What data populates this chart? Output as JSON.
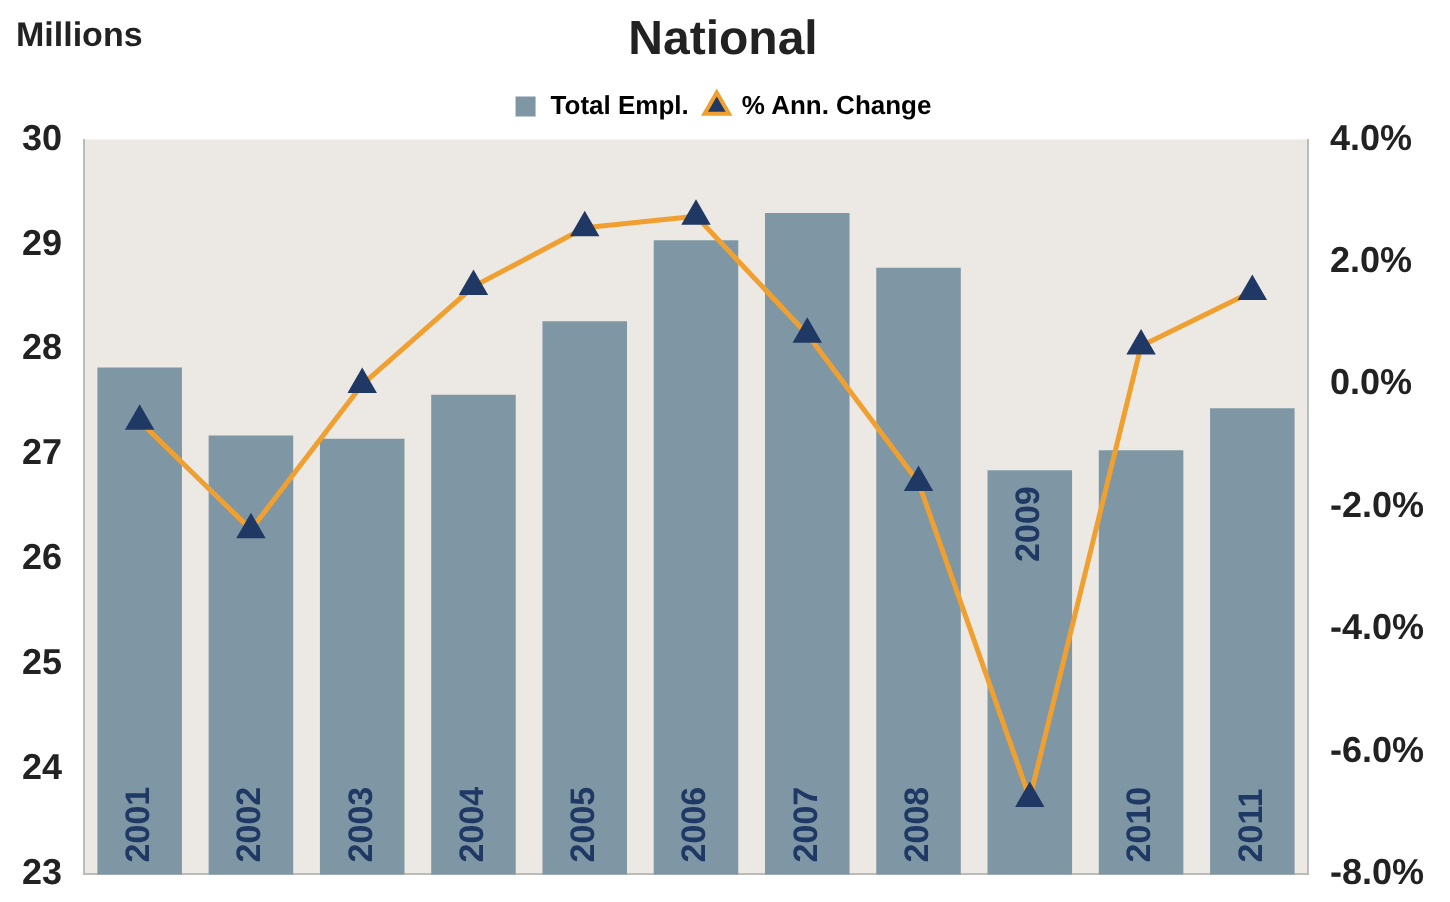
{
  "chart_data": {
    "type": "bar",
    "title": "National",
    "ylabel": "Millions",
    "categories": [
      "2001",
      "2002",
      "2003",
      "2004",
      "2005",
      "2006",
      "2007",
      "2008",
      "2009",
      "2010",
      "2011"
    ],
    "series": [
      {
        "name": "Total Empl.",
        "color": "#7f97a4",
        "values": [
          27.83,
          27.18,
          27.15,
          27.57,
          28.27,
          29.04,
          29.3,
          28.78,
          26.85,
          27.04,
          27.44
        ]
      },
      {
        "name": "% Ann. Change",
        "type": "line",
        "axis": "y2",
        "color": "#f0a030",
        "marker": "triangle",
        "values": [
          -0.6,
          -2.37,
          0.0,
          1.6,
          2.56,
          2.75,
          0.82,
          -1.6,
          -6.76,
          0.63,
          1.52
        ]
      }
    ],
    "ylim": [
      23,
      30
    ],
    "yticks": [
      23,
      24,
      25,
      26,
      27,
      28,
      29,
      30
    ],
    "y2lim": [
      -8,
      4
    ],
    "y2ticks": [
      {
        "value": -8,
        "label": "-8.0%"
      },
      {
        "value": -6,
        "label": "-6.0%"
      },
      {
        "value": -4,
        "label": "-4.0%"
      },
      {
        "value": -2,
        "label": "-2.0%"
      },
      {
        "value": 0,
        "label": "0.0%"
      },
      {
        "value": 2,
        "label": "2.0%"
      },
      {
        "value": 4,
        "label": "4.0%"
      }
    ],
    "legend": "top",
    "grid": false
  }
}
